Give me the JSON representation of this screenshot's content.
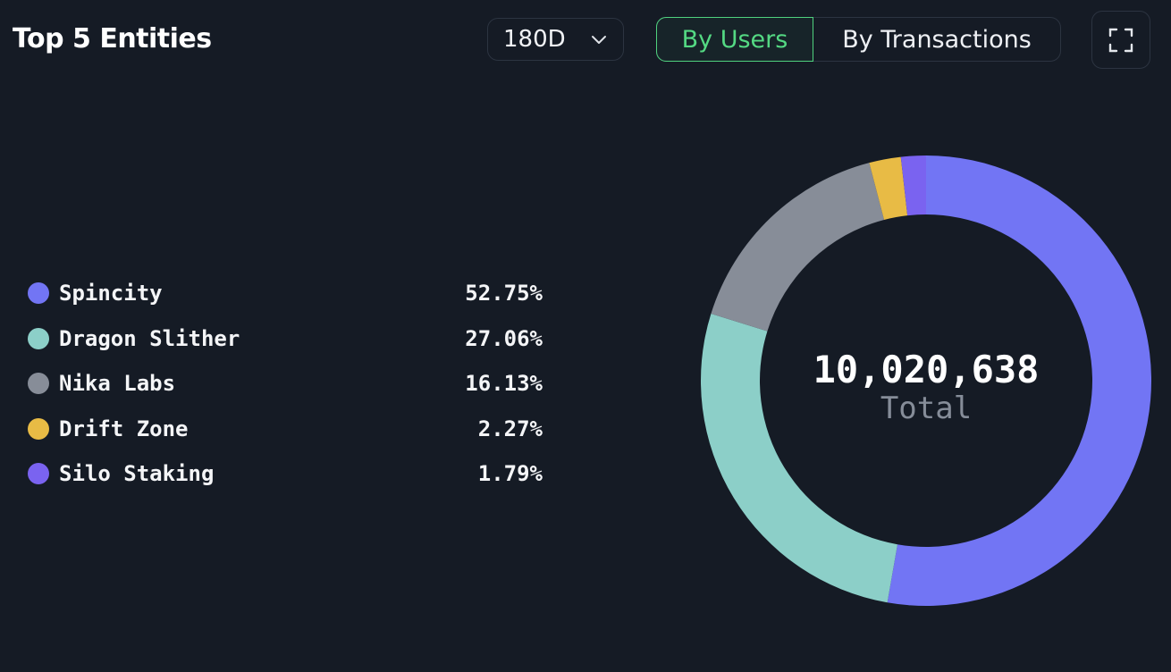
{
  "header": {
    "title": "Top 5 Entities",
    "period": "180D",
    "toggle": {
      "by_users": "By Users",
      "by_transactions": "By Transactions",
      "active": "by_users"
    }
  },
  "chart_data": {
    "type": "pie",
    "variant": "donut",
    "title": "Top 5 Entities",
    "categories": [
      "Spincity",
      "Dragon Slither",
      "Nika Labs",
      "Drift Zone",
      "Silo Staking"
    ],
    "values": [
      52.75,
      27.06,
      16.13,
      2.27,
      1.79
    ],
    "labels": [
      "52.75%",
      "27.06%",
      "16.13%",
      "2.27%",
      "1.79%"
    ],
    "colors": [
      "#7275f4",
      "#8ccfc8",
      "#878d98",
      "#e8bb45",
      "#7a63f0"
    ],
    "center_value": "10,020,638",
    "center_label": "Total",
    "legend_position": "left"
  }
}
